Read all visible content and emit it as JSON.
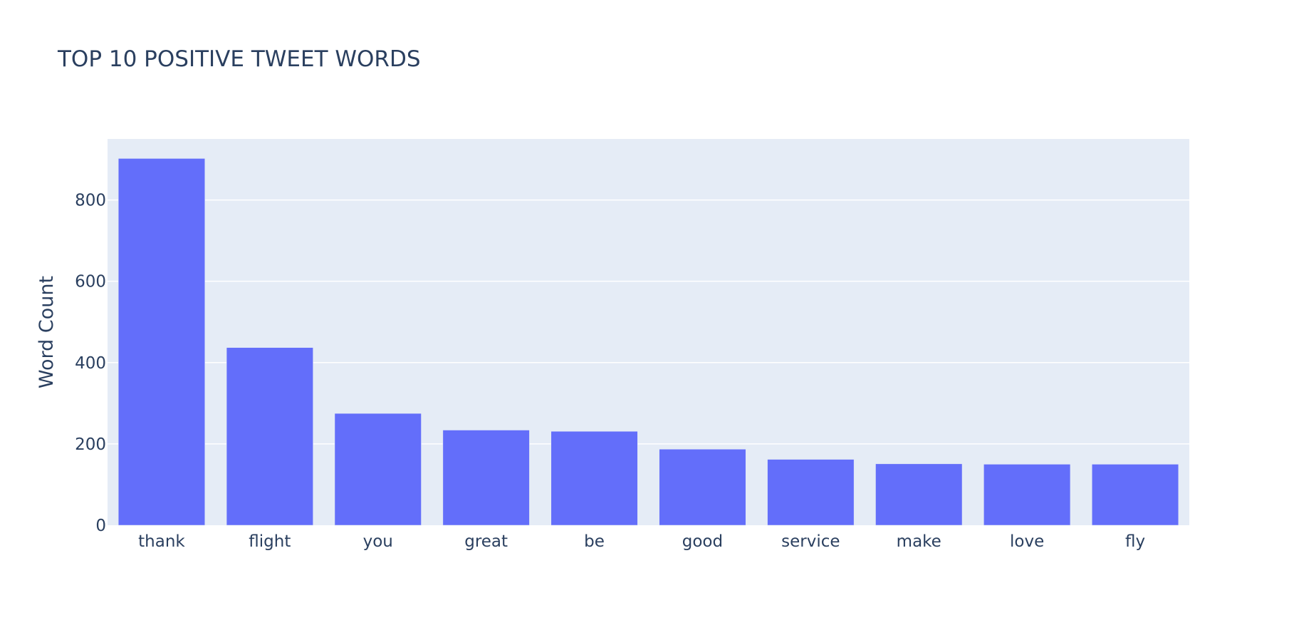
{
  "chart_data": {
    "type": "bar",
    "title": "TOP 10 POSITIVE TWEET WORDS",
    "xlabel": "",
    "ylabel": "Word Count",
    "categories": [
      "thank",
      "flight",
      "you",
      "great",
      "be",
      "good",
      "service",
      "make",
      "love",
      "fly"
    ],
    "values": [
      902,
      437,
      275,
      234,
      231,
      187,
      162,
      151,
      150,
      150
    ],
    "ylim": [
      0,
      950
    ],
    "yticks": [
      0,
      200,
      400,
      600,
      800
    ],
    "grid": true,
    "bar_color": "#636efa",
    "plot_bg": "#e5ecf6",
    "grid_color": "#ffffff",
    "text_color": "#2a3f5f"
  }
}
